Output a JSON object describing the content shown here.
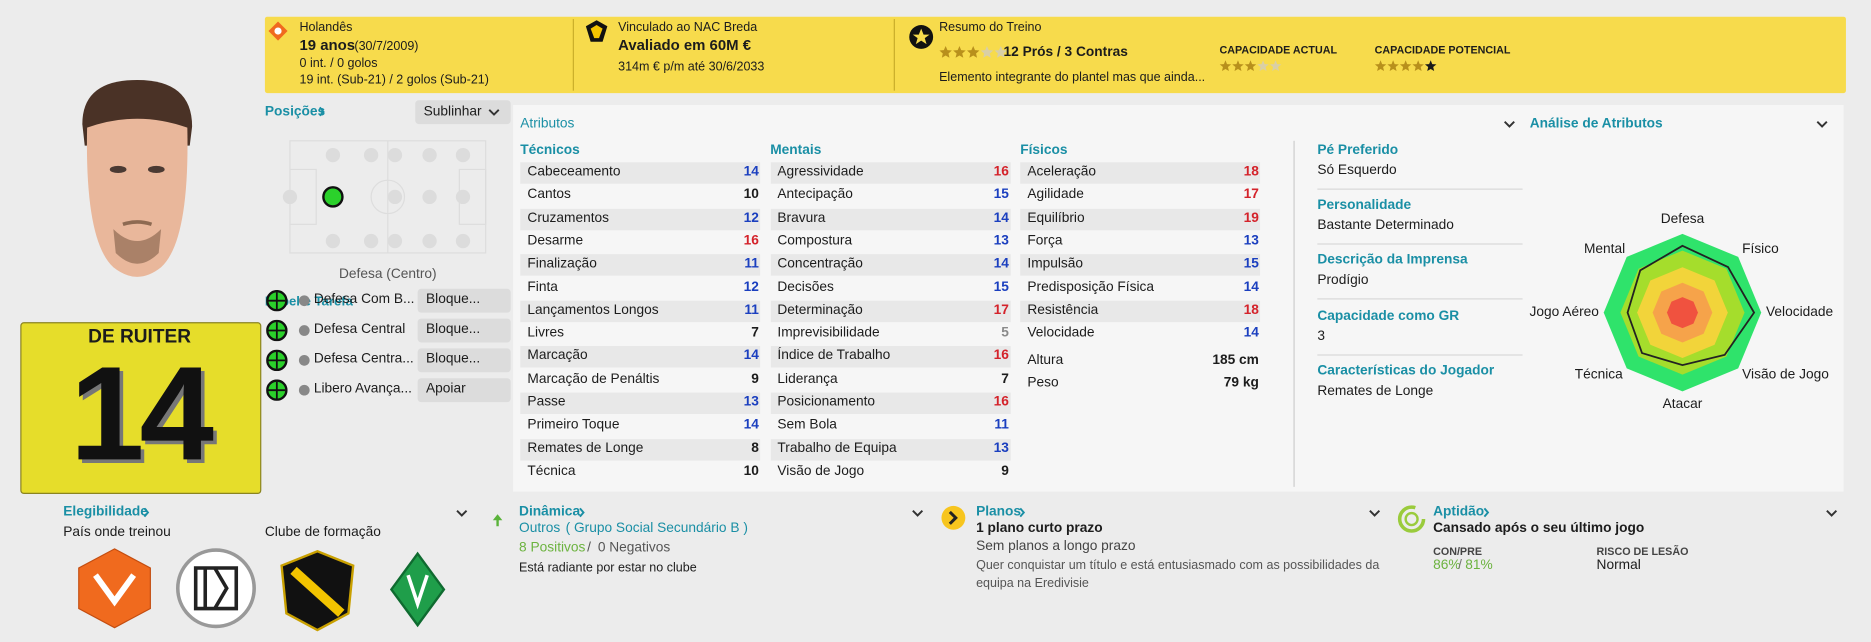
{
  "header": {
    "nationality": "Holandês",
    "age": "19 anos",
    "dob": "(30/7/2009)",
    "caps": "0 int. / 0 golos",
    "youth_caps": "19 int. (Sub-21) / 2 golos (Sub-21)",
    "club_line": "Vinculado ao NAC Breda",
    "value": "Avaliado em 60M €",
    "contract": "314m € p/m até 30/6/2033",
    "training_title": "Resumo do Treino",
    "training_stars": 3,
    "pros_cons": "12 Prós / 3 Contras",
    "training_note": "Elemento integrante do plantel mas que ainda...",
    "current_ability_label": "CAPACIDADE ACTUAL",
    "current_ability_stars": 3,
    "potential_ability_label": "CAPACIDADE POTENCIAL",
    "potential_ability_stars": 4.5
  },
  "player": {
    "name": "DE RUITER",
    "number": "14"
  },
  "positions": {
    "title": "Posições",
    "button": "Sublinhar",
    "position": "Defesa (Centro)"
  },
  "roles": {
    "title": "Papel e Tarefa",
    "items": [
      {
        "role": "Defesa Com B...",
        "duty": "Bloque..."
      },
      {
        "role": "Defesa Central",
        "duty": "Bloque..."
      },
      {
        "role": "Defesa Centra...",
        "duty": "Bloque..."
      },
      {
        "role": "Libero Avança...",
        "duty": "Apoiar"
      }
    ]
  },
  "attributes": {
    "title": "Atributos",
    "groups": [
      {
        "name": "Técnicos",
        "items": [
          {
            "name": "Cabeceamento",
            "value": 14
          },
          {
            "name": "Cantos",
            "value": 10
          },
          {
            "name": "Cruzamentos",
            "value": 12
          },
          {
            "name": "Desarme",
            "value": 16
          },
          {
            "name": "Finalização",
            "value": 11
          },
          {
            "name": "Finta",
            "value": 12
          },
          {
            "name": "Lançamentos Longos",
            "value": 11
          },
          {
            "name": "Livres",
            "value": 7
          },
          {
            "name": "Marcação",
            "value": 14
          },
          {
            "name": "Marcação de Penáltis",
            "value": 9
          },
          {
            "name": "Passe",
            "value": 13
          },
          {
            "name": "Primeiro Toque",
            "value": 14
          },
          {
            "name": "Remates de Longe",
            "value": 8
          },
          {
            "name": "Técnica",
            "value": 10
          }
        ]
      },
      {
        "name": "Mentais",
        "items": [
          {
            "name": "Agressividade",
            "value": 16
          },
          {
            "name": "Antecipação",
            "value": 15
          },
          {
            "name": "Bravura",
            "value": 14
          },
          {
            "name": "Compostura",
            "value": 13
          },
          {
            "name": "Concentração",
            "value": 14
          },
          {
            "name": "Decisões",
            "value": 15
          },
          {
            "name": "Determinação",
            "value": 17
          },
          {
            "name": "Imprevisibilidade",
            "value": 5
          },
          {
            "name": "Índice de Trabalho",
            "value": 16
          },
          {
            "name": "Liderança",
            "value": 7
          },
          {
            "name": "Posicionamento",
            "value": 16
          },
          {
            "name": "Sem Bola",
            "value": 11
          },
          {
            "name": "Trabalho de Equipa",
            "value": 13
          },
          {
            "name": "Visão de Jogo",
            "value": 9
          }
        ]
      },
      {
        "name": "Físicos",
        "items": [
          {
            "name": "Aceleração",
            "value": 18
          },
          {
            "name": "Agilidade",
            "value": 17
          },
          {
            "name": "Equilíbrio",
            "value": 19
          },
          {
            "name": "Força",
            "value": 13
          },
          {
            "name": "Impulsão",
            "value": 15
          },
          {
            "name": "Predisposição Física",
            "value": 14
          },
          {
            "name": "Resistência",
            "value": 18
          },
          {
            "name": "Velocidade",
            "value": 14
          }
        ]
      }
    ],
    "height_label": "Altura",
    "height": "185 cm",
    "weight_label": "Peso",
    "weight": "79 kg"
  },
  "info": [
    {
      "label": "Pé Preferido",
      "value": "Só Esquerdo"
    },
    {
      "label": "Personalidade",
      "value": "Bastante Determinado"
    },
    {
      "label": "Descrição da Imprensa",
      "value": "Prodígio"
    },
    {
      "label": "Capacidade como GR",
      "value": "3"
    },
    {
      "label": "Características do Jogador",
      "value": "Remates de Longe"
    }
  ],
  "analysis": {
    "title": "Análise de Atributos",
    "labels": [
      "Defesa",
      "Físico",
      "Velocidade",
      "Visão de Jogo",
      "Atacar",
      "Técnica",
      "Jogo Aéreo",
      "Mental"
    ]
  },
  "eligibility": {
    "title": "Elegibilidade",
    "trained_label": "País onde treinou",
    "youth_club_label": "Clube de formação"
  },
  "dynamics": {
    "title": "Dinâmica",
    "group": "Outros",
    "group_detail": "( Grupo Social Secundário B )",
    "positives": "8 Positivos",
    "separator": "/",
    "negatives": "0 Negativos",
    "note": "Está radiante por estar no clube"
  },
  "plans": {
    "title": "Planos",
    "headline": "1 plano curto prazo",
    "sub": "Sem planos a longo prazo",
    "note_1": "Quer conquistar um título e está entusiasmado com as possibilidades da",
    "note_2": "equipa na Eredivisie"
  },
  "fitness": {
    "title": "Aptidão",
    "headline": "Cansado após o seu último jogo",
    "con_label": "CON/PRE",
    "con": "86%",
    "separator": "/",
    "pre": "81%",
    "injury_label": "RISCO DE LESÃO",
    "injury": "Normal"
  }
}
